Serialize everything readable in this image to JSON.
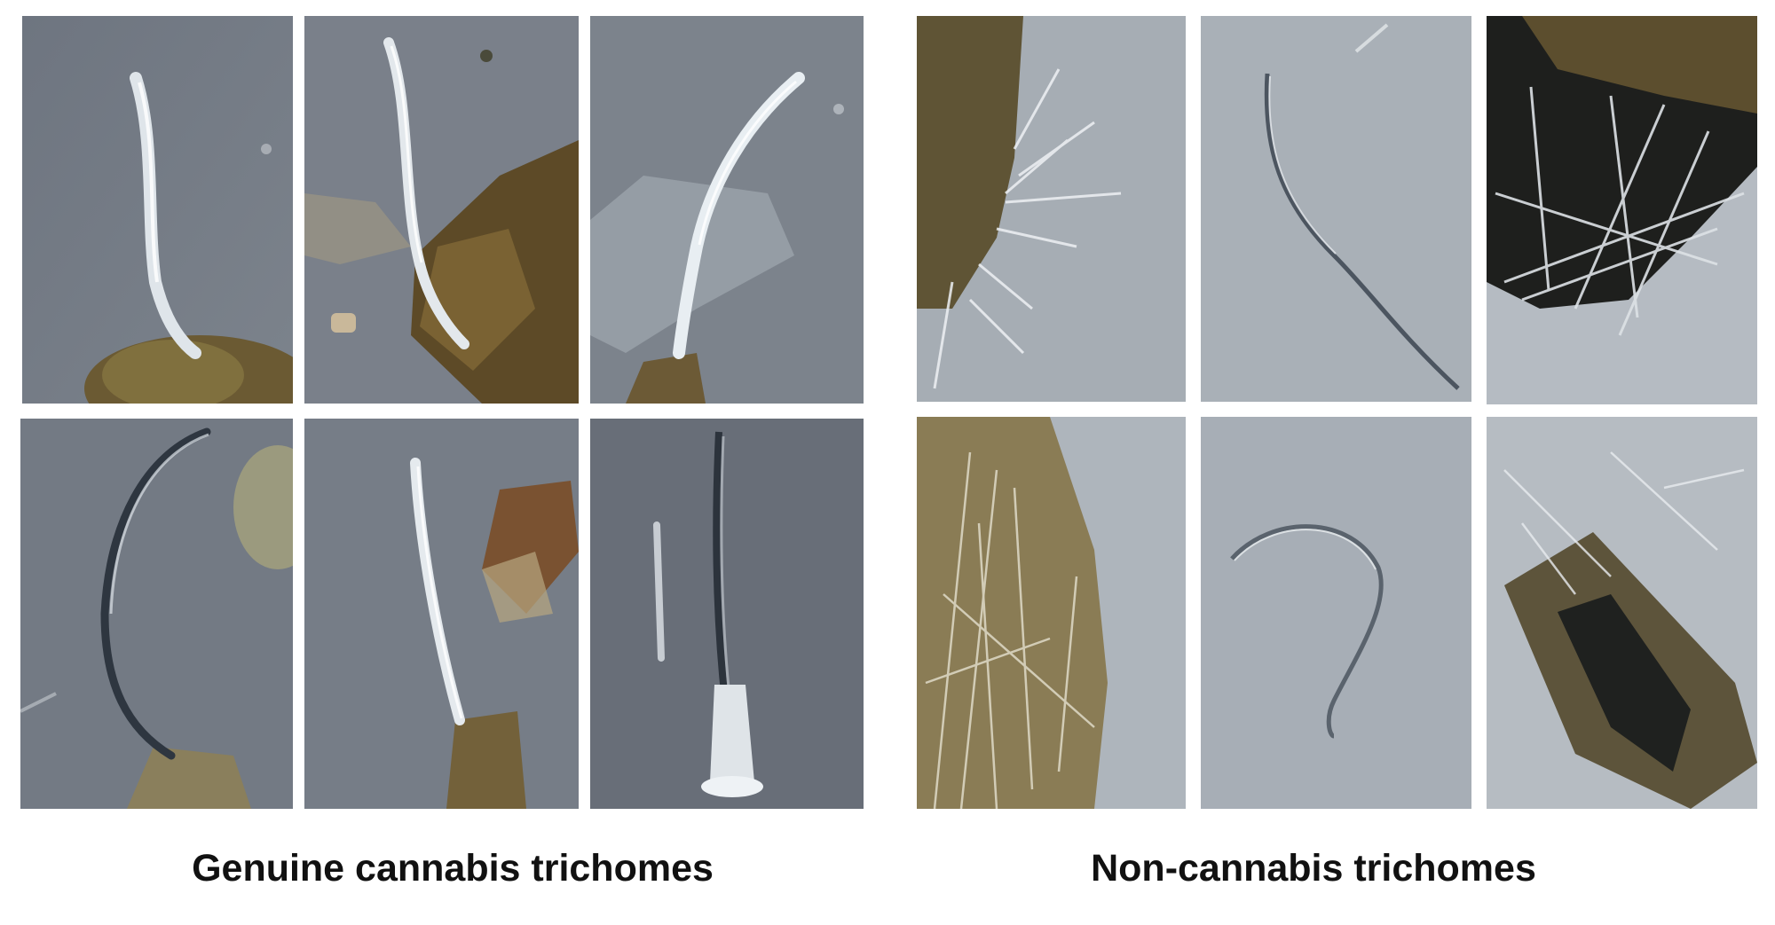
{
  "figure": {
    "groups": [
      {
        "caption": "Genuine cannabis trichomes",
        "panel_count": 6
      },
      {
        "caption": "Non-cannabis trichomes",
        "panel_count": 6
      }
    ],
    "colors": {
      "background_dark_slate": "#6f7680",
      "background_light_slate": "#a9b0b8",
      "plant_debris_brown": "#6b5730",
      "trichome_highlight": "#eef2f6"
    }
  }
}
